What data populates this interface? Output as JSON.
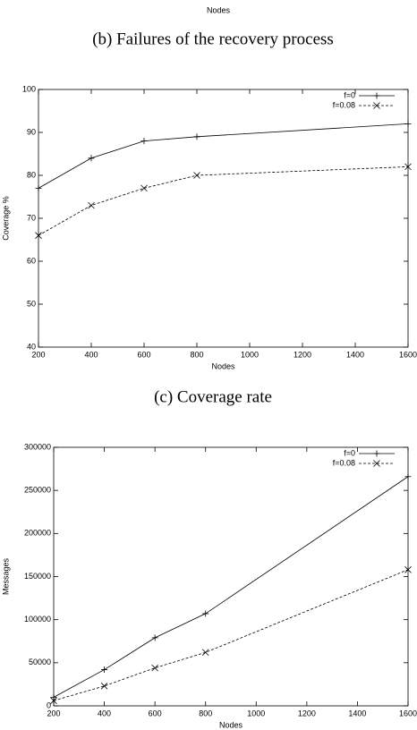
{
  "top_fragment": {
    "x_label": "Nodes",
    "caption": "(b) Failures of the recovery process"
  },
  "chart_data": [
    {
      "type": "line",
      "caption": "(c) Coverage rate",
      "x_label": "Nodes",
      "y_label": "Coverage %",
      "x": [
        200,
        400,
        600,
        800,
        1600
      ],
      "xlim": [
        200,
        1600
      ],
      "xticks": [
        200,
        400,
        600,
        800,
        1000,
        1200,
        1400,
        1600
      ],
      "ylim": [
        40,
        100
      ],
      "yticks": [
        40,
        50,
        60,
        70,
        80,
        90,
        100
      ],
      "legend": "top-right",
      "series": [
        {
          "name": "f=0",
          "color": "#000000",
          "dash": false,
          "marker": "plus",
          "values": [
            77,
            84,
            88,
            89,
            92
          ]
        },
        {
          "name": "f=0.08",
          "color": "#000000",
          "dash": true,
          "marker": "cross",
          "values": [
            66,
            73,
            77,
            80,
            82
          ]
        }
      ]
    },
    {
      "type": "line",
      "x_label": "Nodes",
      "y_label": "Messages",
      "x": [
        200,
        400,
        600,
        800,
        1600
      ],
      "xlim": [
        200,
        1600
      ],
      "xticks": [
        200,
        400,
        600,
        800,
        1000,
        1200,
        1400,
        1600
      ],
      "ylim": [
        0,
        300000
      ],
      "yticks": [
        0,
        50000,
        100000,
        150000,
        200000,
        250000,
        300000
      ],
      "legend": "top-right",
      "series": [
        {
          "name": "f=0",
          "color": "#000000",
          "dash": false,
          "marker": "plus",
          "values": [
            10000,
            42000,
            79000,
            107000,
            266000
          ]
        },
        {
          "name": "f=0.08",
          "color": "#000000",
          "dash": true,
          "marker": "cross",
          "values": [
            6000,
            23000,
            44000,
            62000,
            158000
          ]
        }
      ]
    }
  ]
}
